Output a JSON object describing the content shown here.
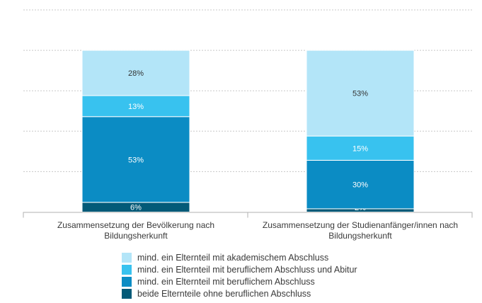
{
  "chart_data": {
    "type": "bar",
    "stacked": true,
    "categories": [
      "Zusammensetzung der Bevölkerung nach Bildungsherkunft",
      "Zusammensetzung der Studienanfänger/innen nach Bildungsherkunft"
    ],
    "category_label_lines": [
      [
        "Zusammensetzung der Bevölkerung nach",
        "Bildungsherkunft"
      ],
      [
        "Zusammensetzung der Studienanfänger/innen nach",
        "Bildungsherkunft"
      ]
    ],
    "series": [
      {
        "name": "beide Elternteile ohne beruflichen Abschluss",
        "values": [
          6,
          2
        ],
        "color": "#035a78",
        "value_label_color": "#ffffff"
      },
      {
        "name": "mind. ein Elternteil mit beruflichem Abschluss",
        "values": [
          53,
          30
        ],
        "color": "#0b8cc4",
        "value_label_color": "#ffffff"
      },
      {
        "name": "mind. ein Elternteil mit beruflichem Abschluss und Abitur",
        "values": [
          13,
          15
        ],
        "color": "#38c2ef",
        "value_label_color": "#ffffff"
      },
      {
        "name": "mind. ein Elternteil mit akademischem Abschluss",
        "values": [
          28,
          53
        ],
        "color": "#b3e5f8",
        "value_label_color": "#333333"
      }
    ],
    "value_suffix": "%",
    "ylim": [
      0,
      125
    ],
    "gridlines": [
      25,
      50,
      75,
      100,
      125
    ],
    "grid": true,
    "legend_position": "bottom",
    "legend_order": [
      3,
      2,
      1,
      0
    ],
    "title": "",
    "xlabel": "",
    "ylabel": ""
  }
}
